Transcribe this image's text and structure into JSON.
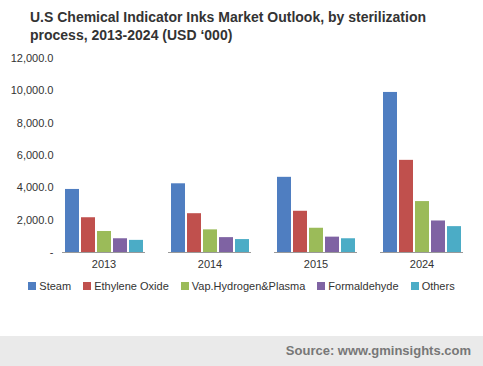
{
  "chart_data": {
    "type": "bar",
    "title": "U.S Chemical Indicator Inks Market Outlook, by sterilization process, 2013-2024 (USD ‘000)",
    "source": "Source: www.gminsights.com",
    "categories": [
      "2013",
      "2014",
      "2015",
      "2024"
    ],
    "series": [
      {
        "name": "Steam",
        "color": "#4f7ec1",
        "values": [
          3900,
          4250,
          4650,
          9900
        ]
      },
      {
        "name": "Ethylene Oxide",
        "color": "#c0504d",
        "values": [
          2150,
          2400,
          2550,
          5700
        ]
      },
      {
        "name": "Vap.Hydrogen&Plasma",
        "color": "#9bbb59",
        "values": [
          1300,
          1400,
          1500,
          3150
        ]
      },
      {
        "name": "Formaldehyde",
        "color": "#7f63a3",
        "values": [
          850,
          920,
          950,
          1950
        ]
      },
      {
        "name": "Others",
        "color": "#4bacc6",
        "values": [
          750,
          800,
          850,
          1600
        ]
      }
    ],
    "ylim": [
      0,
      12000
    ],
    "yticks": [
      {
        "value": 0,
        "label": "-"
      },
      {
        "value": 2000,
        "label": "2,000.0"
      },
      {
        "value": 4000,
        "label": "4,000.0"
      },
      {
        "value": 6000,
        "label": "6,000.0"
      },
      {
        "value": 8000,
        "label": "8,000.0"
      },
      {
        "value": 10000,
        "label": "10,000.0"
      },
      {
        "value": 12000,
        "label": "12,000.0"
      }
    ],
    "grid": false,
    "legend": "bottom"
  }
}
